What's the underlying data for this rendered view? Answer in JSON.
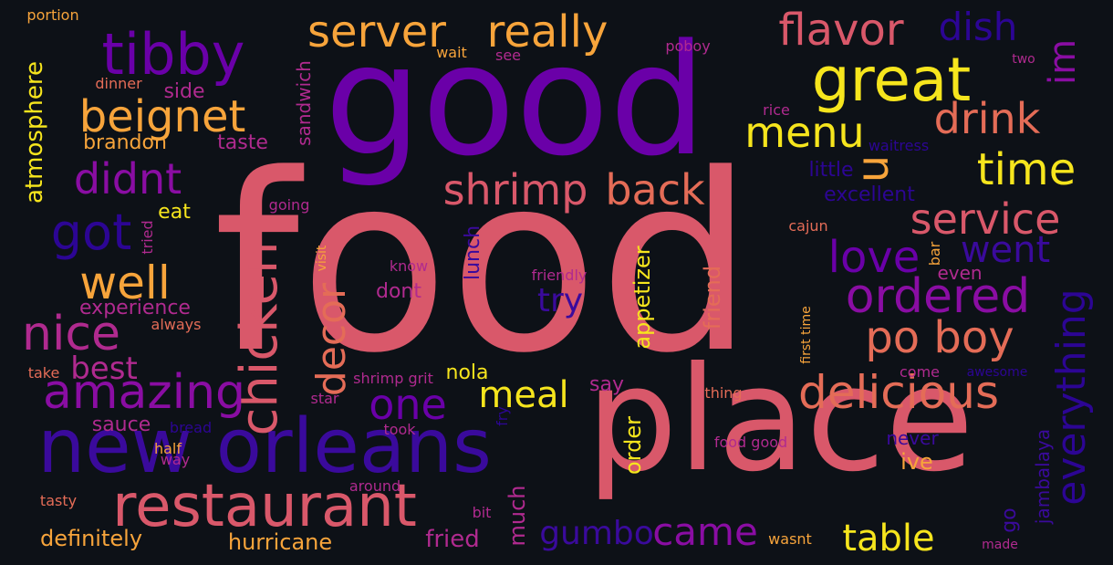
{
  "palette": {
    "background": "#0d1117",
    "yellow": "#f6e51d",
    "orange": "#f7a43b",
    "salmon": "#e46c57",
    "coral": "#d9586a",
    "magenta": "#b02a8f",
    "purple": "#8a0da3",
    "violet": "#6a00a8",
    "indigo": "#3a0a9c",
    "navy": "#2c0594"
  },
  "words": [
    {
      "text": "food",
      "color": "coral"
    },
    {
      "text": "good",
      "color": "violet"
    },
    {
      "text": "place",
      "color": "coral"
    },
    {
      "text": "new orleans",
      "color": "indigo"
    },
    {
      "text": "restaurant",
      "color": "coral"
    },
    {
      "text": "tibby",
      "color": "violet"
    },
    {
      "text": "great",
      "color": "yellow"
    },
    {
      "text": "server",
      "color": "orange"
    },
    {
      "text": "really",
      "color": "orange"
    },
    {
      "text": "flavor",
      "color": "coral"
    },
    {
      "text": "dish",
      "color": "navy"
    },
    {
      "text": "im",
      "color": "purple"
    },
    {
      "text": "beignet",
      "color": "orange"
    },
    {
      "text": "menu",
      "color": "yellow"
    },
    {
      "text": "drink",
      "color": "salmon"
    },
    {
      "text": "u",
      "color": "orange"
    },
    {
      "text": "time",
      "color": "yellow"
    },
    {
      "text": "didnt",
      "color": "purple"
    },
    {
      "text": "shrimp",
      "color": "coral"
    },
    {
      "text": "back",
      "color": "salmon"
    },
    {
      "text": "service",
      "color": "coral"
    },
    {
      "text": "got",
      "color": "navy"
    },
    {
      "text": "went",
      "color": "indigo"
    },
    {
      "text": "well",
      "color": "orange"
    },
    {
      "text": "love",
      "color": "violet"
    },
    {
      "text": "ordered",
      "color": "purple"
    },
    {
      "text": "chicken",
      "color": "coral"
    },
    {
      "text": "decor",
      "color": "salmon"
    },
    {
      "text": "everything",
      "color": "navy"
    },
    {
      "text": "nice",
      "color": "magenta"
    },
    {
      "text": "po boy",
      "color": "salmon"
    },
    {
      "text": "amazing",
      "color": "purple"
    },
    {
      "text": "one",
      "color": "violet"
    },
    {
      "text": "delicious",
      "color": "salmon"
    },
    {
      "text": "meal",
      "color": "yellow"
    },
    {
      "text": "best",
      "color": "magenta"
    },
    {
      "text": "atmosphere",
      "color": "yellow"
    },
    {
      "text": "table",
      "color": "yellow"
    },
    {
      "text": "came",
      "color": "purple"
    },
    {
      "text": "gumbo",
      "color": "indigo"
    },
    {
      "text": "try",
      "color": "indigo"
    },
    {
      "text": "hurricane",
      "color": "orange"
    },
    {
      "text": "definitely",
      "color": "orange"
    },
    {
      "text": "fried",
      "color": "magenta"
    },
    {
      "text": "much",
      "color": "magenta"
    },
    {
      "text": "order",
      "color": "yellow"
    },
    {
      "text": "go",
      "color": "indigo"
    },
    {
      "text": "jambalaya",
      "color": "indigo"
    },
    {
      "text": "ive",
      "color": "orange"
    },
    {
      "text": "never",
      "color": "indigo"
    },
    {
      "text": "appetizer",
      "color": "yellow"
    },
    {
      "text": "friend",
      "color": "salmon"
    },
    {
      "text": "brandon",
      "color": "orange"
    },
    {
      "text": "side",
      "color": "magenta"
    },
    {
      "text": "taste",
      "color": "magenta"
    },
    {
      "text": "sandwich",
      "color": "magenta"
    },
    {
      "text": "experience",
      "color": "magenta"
    },
    {
      "text": "lunch",
      "color": "indigo"
    },
    {
      "text": "dont",
      "color": "magenta"
    },
    {
      "text": "eat",
      "color": "yellow"
    },
    {
      "text": "nola",
      "color": "yellow"
    },
    {
      "text": "say",
      "color": "magenta"
    },
    {
      "text": "sauce",
      "color": "magenta"
    },
    {
      "text": "excellent",
      "color": "navy"
    },
    {
      "text": "little",
      "color": "navy"
    },
    {
      "text": "even",
      "color": "magenta"
    },
    {
      "text": "portion",
      "color": "orange"
    },
    {
      "text": "dinner",
      "color": "salmon"
    },
    {
      "text": "wait",
      "color": "orange"
    },
    {
      "text": "see",
      "color": "magenta"
    },
    {
      "text": "poboy",
      "color": "magenta"
    },
    {
      "text": "two",
      "color": "magenta"
    },
    {
      "text": "rice",
      "color": "magenta"
    },
    {
      "text": "waitress",
      "color": "navy"
    },
    {
      "text": "going",
      "color": "magenta"
    },
    {
      "text": "tried",
      "color": "magenta"
    },
    {
      "text": "visit",
      "color": "orange"
    },
    {
      "text": "cajun",
      "color": "salmon"
    },
    {
      "text": "bar",
      "color": "orange"
    },
    {
      "text": "know",
      "color": "magenta"
    },
    {
      "text": "friendly",
      "color": "magenta"
    },
    {
      "text": "always",
      "color": "salmon"
    },
    {
      "text": "first time",
      "color": "orange"
    },
    {
      "text": "take",
      "color": "salmon"
    },
    {
      "text": "shrimp grit",
      "color": "magenta"
    },
    {
      "text": "star",
      "color": "magenta"
    },
    {
      "text": "come",
      "color": "magenta"
    },
    {
      "text": "awesome",
      "color": "navy"
    },
    {
      "text": "thing",
      "color": "salmon"
    },
    {
      "text": "bread",
      "color": "navy"
    },
    {
      "text": "took",
      "color": "magenta"
    },
    {
      "text": "fry",
      "color": "navy"
    },
    {
      "text": "half",
      "color": "orange"
    },
    {
      "text": "way",
      "color": "magenta"
    },
    {
      "text": "food good",
      "color": "magenta"
    },
    {
      "text": "around",
      "color": "magenta"
    },
    {
      "text": "tasty",
      "color": "salmon"
    },
    {
      "text": "bit",
      "color": "magenta"
    },
    {
      "text": "wasnt",
      "color": "orange"
    },
    {
      "text": "made",
      "color": "magenta"
    }
  ]
}
